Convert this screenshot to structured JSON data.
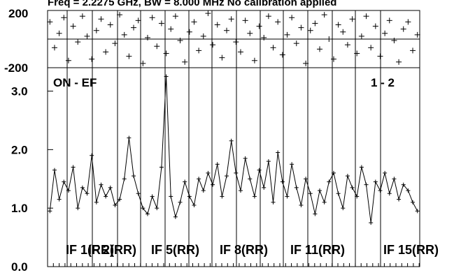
{
  "chart_data": [
    {
      "type": "scatter",
      "panel": "phase",
      "title": "Freq = 2.2275 GHz, BW = 8.000 MHz   No calibration applied",
      "ylim": [
        -200,
        200
      ],
      "ytick_labels": [
        "200",
        "-200"
      ],
      "grid": true,
      "x": [
        1,
        3,
        5,
        7,
        9,
        11,
        13,
        15,
        17,
        19,
        21,
        23,
        25,
        27,
        29,
        31,
        33,
        35,
        37,
        39,
        41,
        43,
        45,
        47,
        49,
        51,
        53,
        55,
        57,
        59,
        61,
        63,
        65,
        67,
        69,
        71,
        73,
        75,
        77,
        79,
        81,
        83,
        85,
        87,
        89,
        91,
        93,
        95,
        97,
        99,
        101,
        103,
        105,
        107,
        109,
        111,
        113,
        115,
        117,
        119,
        121,
        123,
        125,
        127,
        129,
        131,
        133,
        135,
        137,
        139,
        141,
        143,
        145,
        147,
        149,
        151,
        153,
        155,
        157,
        159
      ],
      "y": [
        120,
        -60,
        40,
        150,
        -150,
        90,
        -20,
        160,
        20,
        -140,
        60,
        140,
        -90,
        100,
        -30,
        170,
        30,
        -120,
        80,
        130,
        -170,
        10,
        150,
        -50,
        110,
        -100,
        70,
        160,
        -10,
        -160,
        50,
        120,
        -80,
        20,
        180,
        -40,
        100,
        -130,
        60,
        140,
        -20,
        -90,
        130,
        40,
        -150,
        90,
        10,
        160,
        -60,
        120,
        -110,
        30,
        150,
        -30,
        80,
        -170,
        60,
        110,
        -70,
        170,
        0,
        -140,
        100,
        50,
        -40,
        140,
        -100,
        20,
        160,
        -60,
        90,
        -120,
        40,
        130,
        -10,
        -160,
        70,
        120,
        -80,
        30
      ]
    },
    {
      "type": "line",
      "panel": "amplitude",
      "annotation_left": "ON - EF",
      "annotation_right": "1 - 2",
      "ylim": [
        0.0,
        3.4
      ],
      "yticks": [
        0.0,
        1.0,
        2.0,
        3.0
      ],
      "ytick_labels": [
        "0.0",
        "1.0",
        "2.0",
        "3.0"
      ],
      "grid": true,
      "segment_labels": [
        "IF 1(RR)",
        "IF 2(RR)",
        "IF 5(RR)",
        "IF 8(RR)",
        "IF 11(RR)",
        "IF 15(RR)"
      ],
      "x": [
        1,
        3,
        5,
        7,
        9,
        11,
        13,
        15,
        17,
        19,
        21,
        23,
        25,
        27,
        29,
        31,
        33,
        35,
        37,
        39,
        41,
        43,
        45,
        47,
        49,
        51,
        53,
        55,
        57,
        59,
        61,
        63,
        65,
        67,
        69,
        71,
        73,
        75,
        77,
        79,
        81,
        83,
        85,
        87,
        89,
        91,
        93,
        95,
        97,
        99,
        101,
        103,
        105,
        107,
        109,
        111,
        113,
        115,
        117,
        119,
        121,
        123,
        125,
        127,
        129,
        131,
        133,
        135,
        137,
        139,
        141,
        143,
        145,
        147,
        149,
        151,
        153,
        155,
        157,
        159
      ],
      "y": [
        0.95,
        1.65,
        1.15,
        1.45,
        1.3,
        1.7,
        1.0,
        1.35,
        1.25,
        1.9,
        1.1,
        1.4,
        1.2,
        1.35,
        1.05,
        1.15,
        1.5,
        2.2,
        1.55,
        1.25,
        1.0,
        0.9,
        1.2,
        1.0,
        1.7,
        3.25,
        1.2,
        0.85,
        1.1,
        1.45,
        1.2,
        1.05,
        1.5,
        1.3,
        1.6,
        1.4,
        1.75,
        1.2,
        1.55,
        2.15,
        1.6,
        1.3,
        1.85,
        1.5,
        1.2,
        1.65,
        1.35,
        1.8,
        1.1,
        1.95,
        1.45,
        1.2,
        1.75,
        1.35,
        1.05,
        1.5,
        1.25,
        0.9,
        1.3,
        1.1,
        1.45,
        1.6,
        1.25,
        1.0,
        1.55,
        1.35,
        1.2,
        1.7,
        1.4,
        0.75,
        1.45,
        1.3,
        1.6,
        1.25,
        1.5,
        1.15,
        1.4,
        1.3,
        1.1,
        0.95
      ]
    }
  ]
}
